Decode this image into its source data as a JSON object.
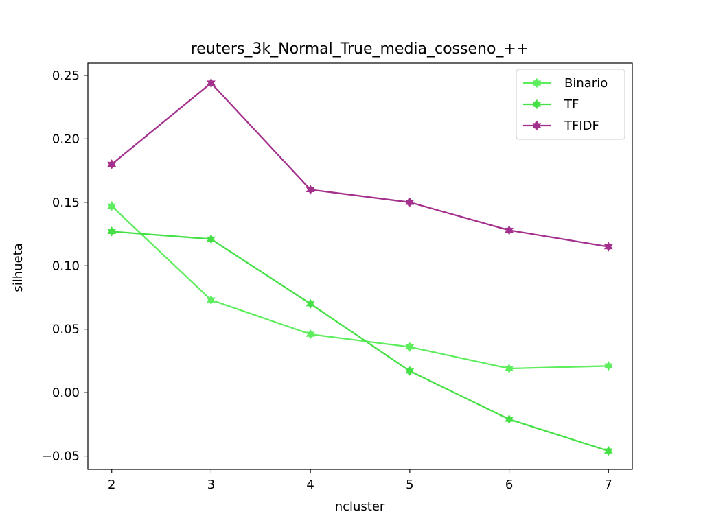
{
  "chart_data": {
    "type": "line",
    "title": "reuters_3k_Normal_True_media_cosseno_++",
    "xlabel": "ncluster",
    "ylabel": "silhueta",
    "x": [
      2,
      3,
      4,
      5,
      6,
      7
    ],
    "x_tick_labels": [
      "2",
      "3",
      "4",
      "5",
      "6",
      "7"
    ],
    "y_ticks": [
      -0.05,
      0.0,
      0.05,
      0.1,
      0.15,
      0.2,
      0.25
    ],
    "y_tick_labels": [
      "−0.05",
      "0.00",
      "0.05",
      "0.10",
      "0.15",
      "0.20",
      "0.25"
    ],
    "xlim": [
      1.76,
      7.24
    ],
    "ylim": [
      -0.0605,
      0.2597
    ],
    "grid": false,
    "legend_position": "top-right",
    "series": [
      {
        "name": "Binario",
        "color": "#5ded5d",
        "values": [
          0.147,
          0.073,
          0.046,
          0.036,
          0.019,
          0.021
        ]
      },
      {
        "name": "TF",
        "color": "#45e045",
        "values": [
          0.127,
          0.121,
          0.07,
          0.017,
          -0.021,
          -0.046
        ]
      },
      {
        "name": "TFIDF",
        "color": "#a3308c",
        "values": [
          0.18,
          0.244,
          0.16,
          0.15,
          0.128,
          0.115
        ]
      }
    ]
  }
}
